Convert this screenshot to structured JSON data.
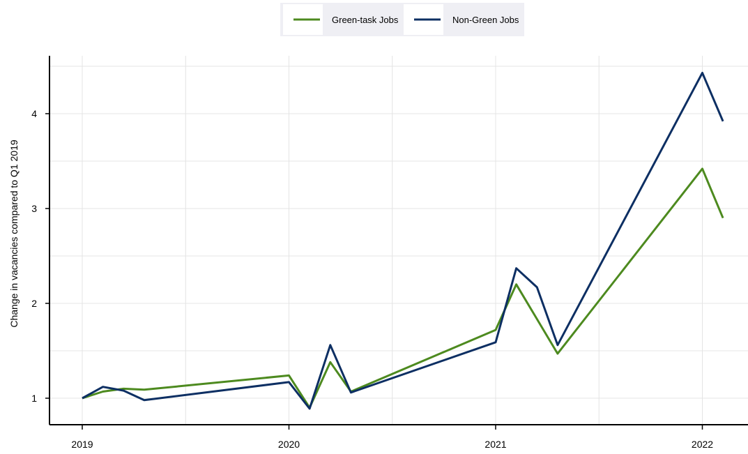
{
  "chart_data": {
    "type": "line",
    "title": "",
    "xlabel": "",
    "ylabel": "Change in vacancies compared to Q1 2019",
    "xlim": [
      2019,
      2022.125
    ],
    "ylim": [
      0.73,
      4.62
    ],
    "x_ticks": [
      2019,
      2020,
      2021,
      2022
    ],
    "x_tick_labels": [
      "2019",
      "2020",
      "2021",
      "2022"
    ],
    "y_ticks": [
      1,
      2,
      3,
      4
    ],
    "y_tick_labels": [
      "1",
      "2",
      "3",
      "4"
    ],
    "grid": true,
    "legend": "top-center",
    "series": [
      {
        "name": "Green-task Jobs",
        "color": "#4d8a1f",
        "points": [
          [
            2019.0,
            1.0
          ],
          [
            2019.1,
            1.07
          ],
          [
            2019.2,
            1.1
          ],
          [
            2019.3,
            1.09
          ],
          [
            2020.0,
            1.24
          ],
          [
            2020.1,
            0.9
          ],
          [
            2020.2,
            1.38
          ],
          [
            2020.3,
            1.07
          ],
          [
            2021.0,
            1.72
          ],
          [
            2021.1,
            2.2
          ],
          [
            2021.3,
            1.47
          ],
          [
            2022.0,
            3.42
          ],
          [
            2022.1,
            2.9
          ]
        ]
      },
      {
        "name": "Non-Green Jobs",
        "color": "#0d2f63",
        "points": [
          [
            2019.0,
            1.0
          ],
          [
            2019.1,
            1.12
          ],
          [
            2019.2,
            1.08
          ],
          [
            2019.3,
            0.98
          ],
          [
            2020.0,
            1.17
          ],
          [
            2020.1,
            0.89
          ],
          [
            2020.2,
            1.56
          ],
          [
            2020.3,
            1.06
          ],
          [
            2021.0,
            1.59
          ],
          [
            2021.1,
            2.37
          ],
          [
            2021.2,
            2.17
          ],
          [
            2021.3,
            1.56
          ],
          [
            2022.0,
            4.43
          ],
          [
            2022.1,
            3.92
          ]
        ]
      }
    ]
  }
}
